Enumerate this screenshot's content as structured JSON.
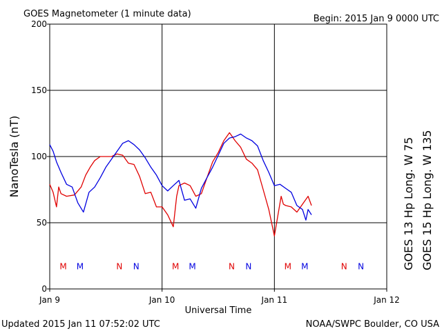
{
  "title": "GOES Magnetometer (1 minute data)",
  "begin_label": "Begin:  2015 Jan 9 0000 UTC",
  "footer_left": "Updated 2015 Jan 11 07:52:02 UTC",
  "footer_right": "NOAA/SWPC Boulder, CO USA",
  "chart_data": {
    "type": "line",
    "xlabel": "Universal Time",
    "ylabel": "NanoTesla (nT)",
    "xlim": [
      0,
      3
    ],
    "ylim": [
      0,
      200
    ],
    "x_ticks": [
      {
        "x": 0,
        "label": "Jan 9"
      },
      {
        "x": 1,
        "label": "Jan 10"
      },
      {
        "x": 2,
        "label": "Jan 11"
      },
      {
        "x": 3,
        "label": "Jan 12"
      }
    ],
    "y_ticks": [
      0,
      50,
      100,
      150,
      200
    ],
    "grid": true,
    "series": [
      {
        "name": "GOES 13 Hp  Long. W 75",
        "color": "#e00000",
        "x": [
          0.0,
          0.03,
          0.06,
          0.08,
          0.1,
          0.15,
          0.22,
          0.28,
          0.32,
          0.36,
          0.4,
          0.45,
          0.5,
          0.55,
          0.6,
          0.65,
          0.7,
          0.75,
          0.8,
          0.85,
          0.9,
          0.95,
          1.0,
          1.05,
          1.1,
          1.13,
          1.15,
          1.2,
          1.25,
          1.3,
          1.35,
          1.4,
          1.45,
          1.5,
          1.55,
          1.6,
          1.65,
          1.7,
          1.75,
          1.8,
          1.85,
          1.9,
          1.95,
          2.0,
          2.03,
          2.06,
          2.08,
          2.1,
          2.15,
          2.2,
          2.25,
          2.3,
          2.33
        ],
        "values": [
          79,
          73,
          62,
          77,
          72,
          70,
          71,
          77,
          86,
          92,
          97,
          100,
          100,
          100,
          102,
          101,
          95,
          94,
          85,
          72,
          73,
          62,
          62,
          56,
          47,
          70,
          78,
          80,
          78,
          70,
          72,
          84,
          96,
          103,
          112,
          118,
          112,
          107,
          98,
          95,
          90,
          75,
          60,
          40,
          55,
          70,
          64,
          63,
          62,
          58,
          64,
          70,
          63
        ]
      },
      {
        "name": "GOES 15 Hp  Long. W 135",
        "color": "#0000e0",
        "x": [
          0.0,
          0.03,
          0.06,
          0.1,
          0.15,
          0.2,
          0.25,
          0.3,
          0.35,
          0.4,
          0.45,
          0.5,
          0.55,
          0.6,
          0.65,
          0.7,
          0.75,
          0.8,
          0.85,
          0.9,
          0.95,
          1.0,
          1.05,
          1.1,
          1.15,
          1.2,
          1.25,
          1.3,
          1.35,
          1.4,
          1.45,
          1.5,
          1.55,
          1.6,
          1.65,
          1.7,
          1.75,
          1.8,
          1.85,
          1.9,
          1.95,
          2.0,
          2.05,
          2.1,
          2.15,
          2.2,
          2.25,
          2.28,
          2.3,
          2.33
        ],
        "values": [
          109,
          104,
          96,
          88,
          79,
          77,
          65,
          58,
          73,
          77,
          84,
          92,
          98,
          104,
          110,
          112,
          109,
          105,
          99,
          92,
          86,
          78,
          74,
          78,
          82,
          67,
          68,
          61,
          76,
          84,
          92,
          101,
          110,
          114,
          115,
          117,
          114,
          112,
          108,
          97,
          88,
          78,
          79,
          76,
          73,
          63,
          60,
          52,
          60,
          56
        ]
      }
    ],
    "markers": [
      {
        "x": 0.12,
        "label": "M",
        "color": "#e00000"
      },
      {
        "x": 0.27,
        "label": "M",
        "color": "#0000e0"
      },
      {
        "x": 0.62,
        "label": "N",
        "color": "#e00000"
      },
      {
        "x": 0.77,
        "label": "N",
        "color": "#0000e0"
      },
      {
        "x": 1.12,
        "label": "M",
        "color": "#e00000"
      },
      {
        "x": 1.27,
        "label": "M",
        "color": "#0000e0"
      },
      {
        "x": 1.62,
        "label": "N",
        "color": "#e00000"
      },
      {
        "x": 1.77,
        "label": "N",
        "color": "#0000e0"
      },
      {
        "x": 2.12,
        "label": "M",
        "color": "#e00000"
      },
      {
        "x": 2.27,
        "label": "M",
        "color": "#0000e0"
      },
      {
        "x": 2.62,
        "label": "N",
        "color": "#e00000"
      },
      {
        "x": 2.77,
        "label": "N",
        "color": "#0000e0"
      }
    ],
    "marker_y": 17
  }
}
